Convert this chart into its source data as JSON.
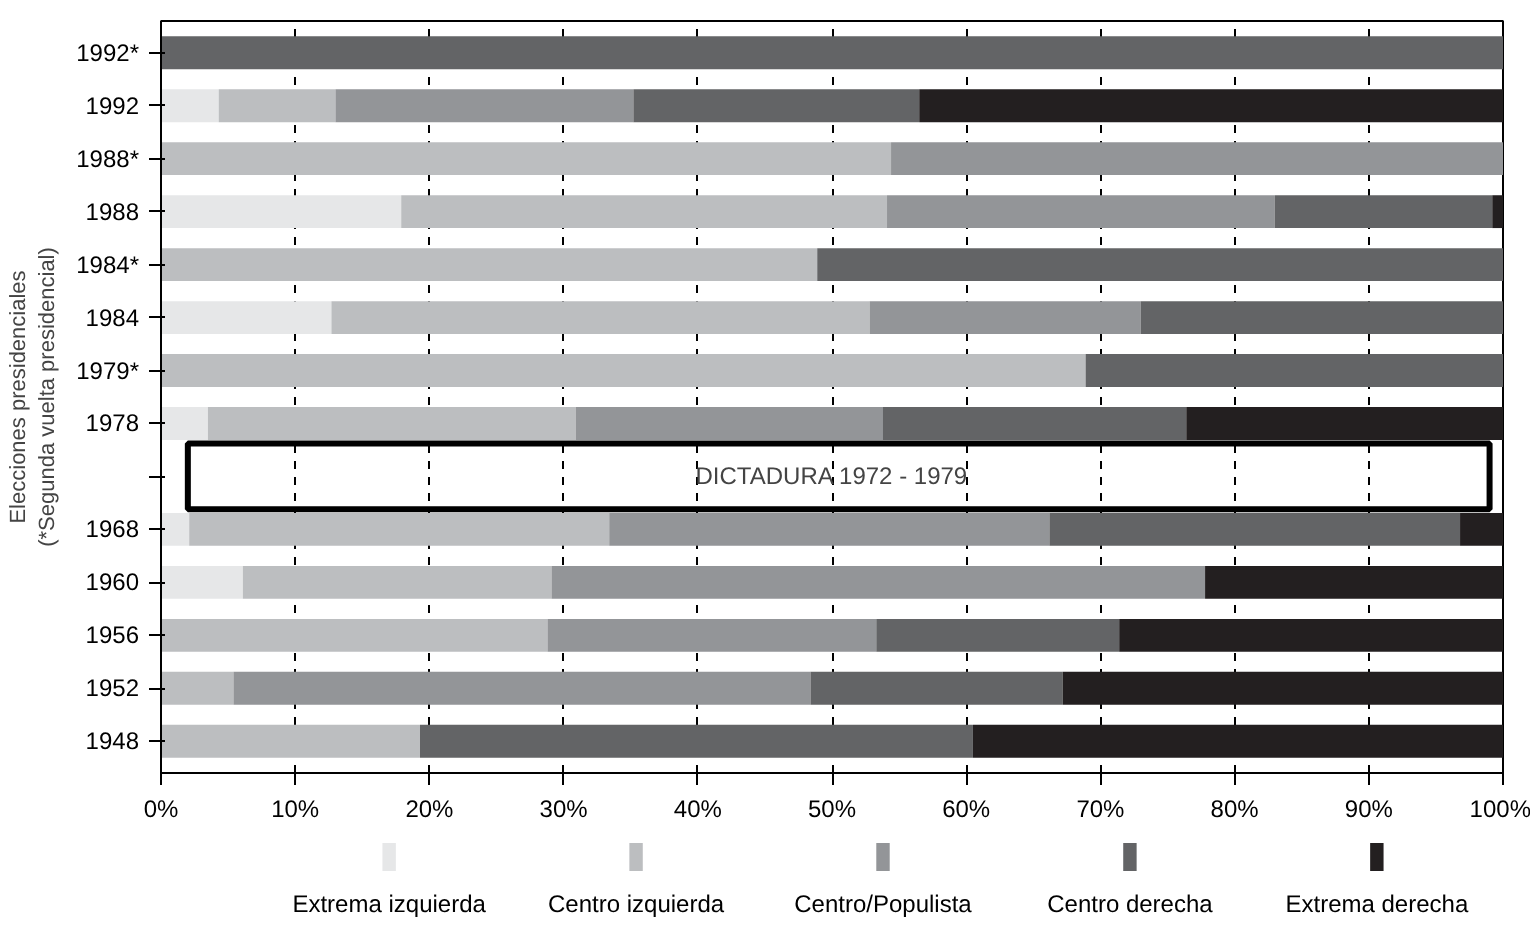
{
  "chart_data": {
    "type": "bar",
    "orientation": "horizontal",
    "stacked": true,
    "ylabel": "Elecciones presidenciales\n(*Segunda vuelta presidencial)",
    "categories": [
      "1992*",
      "1992",
      "1988*",
      "1988",
      "1984*",
      "1984",
      "1979*",
      "1978",
      null,
      "1968",
      "1960",
      "1956",
      "1952",
      "1948"
    ],
    "series": [
      {
        "name": "Extrema izquierda",
        "color": "#e6e7e8",
        "values": [
          null,
          4.3,
          null,
          17.9,
          null,
          12.7,
          null,
          3.5,
          null,
          2.1,
          6.1,
          null,
          null,
          null
        ]
      },
      {
        "name": "Centro izquierda",
        "color": "#bcbec0",
        "values": [
          null,
          8.7,
          54.4,
          36.2,
          48.9,
          40.1,
          68.9,
          27.4,
          null,
          31.3,
          23.0,
          28.8,
          5.4,
          19.3
        ]
      },
      {
        "name": "Centro/Populista",
        "color": "#939598",
        "values": [
          null,
          22.2,
          45.6,
          28.9,
          null,
          20.2,
          null,
          22.9,
          null,
          32.8,
          48.7,
          24.5,
          43.0,
          null
        ]
      },
      {
        "name": "Centro derecha",
        "color": "#636466",
        "values": [
          100,
          21.3,
          null,
          16.2,
          51.1,
          27.0,
          31.1,
          22.6,
          null,
          30.6,
          null,
          18.1,
          18.8,
          41.2
        ]
      },
      {
        "name": "Extrema derecha",
        "color": "#231f20",
        "values": [
          null,
          43.5,
          null,
          0.8,
          null,
          null,
          null,
          23.6,
          null,
          3.2,
          22.2,
          28.6,
          32.8,
          39.5
        ]
      }
    ],
    "xlim": [
      0,
      100
    ],
    "xticks": [
      {
        "value": 0,
        "label": "0%"
      },
      {
        "value": 10,
        "label": "10%"
      },
      {
        "value": 20,
        "label": "20%"
      },
      {
        "value": 30,
        "label": "30%"
      },
      {
        "value": 40,
        "label": "40%"
      },
      {
        "value": 50,
        "label": "50%"
      },
      {
        "value": 60,
        "label": "60%"
      },
      {
        "value": 70,
        "label": "70%"
      },
      {
        "value": 80,
        "label": "80%"
      },
      {
        "value": 90,
        "label": "90%"
      },
      {
        "value": 100,
        "label": "100%"
      }
    ],
    "grid": "x",
    "legend": "bottom",
    "annotations": [
      "DICTADURA 1972 - 1979"
    ]
  }
}
